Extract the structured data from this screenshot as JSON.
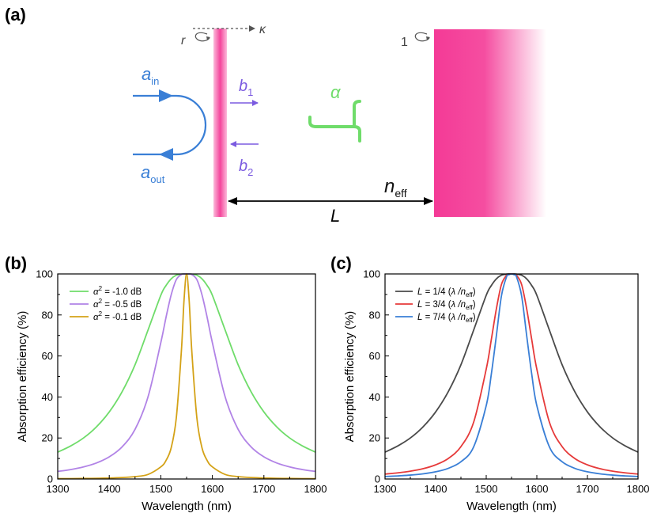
{
  "panel_labels": {
    "a": "(a)",
    "b": "(b)",
    "c": "(c)"
  },
  "diagram": {
    "r": "r",
    "kappa": "κ",
    "one": "1",
    "a_in_base": "a",
    "a_in_sub": "in",
    "a_out_base": "a",
    "a_out_sub": "out",
    "b1_base": "b",
    "b1_sub": "1",
    "b2_base": "b",
    "b2_sub": "2",
    "alpha": "α",
    "n_base": "n",
    "n_sub": "eff",
    "L": "L",
    "colors": {
      "blue": "#3a7fd6",
      "purple": "#7b5be0",
      "green": "#6fdc6a",
      "pink": "#f43a96",
      "dark": "#444444"
    }
  },
  "chart_data": [
    {
      "type": "line",
      "id": "b",
      "xlabel": "Wavelength (nm)",
      "ylabel": "Absorption efficiency (%)",
      "xlim": [
        1300,
        1800
      ],
      "ylim": [
        0,
        100
      ],
      "xticks": [
        1300,
        1400,
        1500,
        1600,
        1700,
        1800
      ],
      "yticks": [
        0,
        20,
        40,
        60,
        80,
        100
      ],
      "legend_position": "top-left",
      "x": [
        1300,
        1325,
        1350,
        1375,
        1400,
        1425,
        1450,
        1475,
        1500,
        1510,
        1520,
        1530,
        1540,
        1545,
        1550,
        1555,
        1560,
        1570,
        1580,
        1590,
        1600,
        1625,
        1650,
        1675,
        1700,
        1725,
        1750,
        1775,
        1800
      ],
      "series": [
        {
          "name_pre": "α",
          "name_sup": "2",
          "name_post": " = -1.0 dB",
          "color": "#6fdc6a",
          "values": [
            13.1,
            16.1,
            20,
            25.4,
            32.7,
            42.6,
            55.7,
            72.5,
            89.6,
            94.3,
            97.6,
            99.4,
            99.9,
            100,
            100,
            100,
            99.9,
            99.4,
            97.6,
            94.3,
            89.6,
            72.5,
            55.7,
            42.6,
            32.7,
            25.4,
            20,
            16.1,
            13.1
          ]
        },
        {
          "name_pre": "α",
          "name_sup": "2",
          "name_post": " = -0.5 dB",
          "color": "#b183e6",
          "values": [
            3.7,
            4.6,
            5.9,
            7.8,
            10.8,
            15.7,
            24.2,
            39.9,
            66.5,
            78.7,
            89.7,
            97.2,
            99.7,
            100,
            100,
            100,
            99.7,
            97.2,
            89.7,
            78.7,
            66.5,
            39.9,
            24.2,
            15.7,
            10.8,
            7.8,
            5.9,
            4.6,
            3.7
          ]
        },
        {
          "name_pre": "α",
          "name_sup": "2",
          "name_post": " = -0.1 dB",
          "color": "#d4a217",
          "values": [
            0.16,
            0.2,
            0.26,
            0.35,
            0.49,
            0.73,
            1.17,
            2.2,
            5.9,
            9.0,
            15.1,
            29.7,
            62.8,
            87,
            100,
            87,
            62.8,
            29.7,
            15.1,
            9.0,
            5.9,
            2.2,
            1.17,
            0.73,
            0.49,
            0.35,
            0.26,
            0.2,
            0.16
          ]
        }
      ]
    },
    {
      "type": "line",
      "id": "c",
      "xlabel": "Wavelength (nm)",
      "ylabel": "Absorption efficiency (%)",
      "xlim": [
        1300,
        1800
      ],
      "ylim": [
        0,
        100
      ],
      "xticks": [
        1300,
        1400,
        1500,
        1600,
        1700,
        1800
      ],
      "yticks": [
        0,
        20,
        40,
        60,
        80,
        100
      ],
      "legend_position": "top-left",
      "x": [
        1300,
        1325,
        1350,
        1375,
        1400,
        1425,
        1450,
        1475,
        1500,
        1510,
        1520,
        1530,
        1540,
        1545,
        1550,
        1555,
        1560,
        1570,
        1580,
        1590,
        1600,
        1625,
        1650,
        1675,
        1700,
        1725,
        1750,
        1775,
        1800
      ],
      "series": [
        {
          "name_pre": "L",
          "name_mid": " = 1/4 (",
          "name_lambda": "λ",
          "name_n": " /n",
          "name_sub": "eff",
          "name_post": ")",
          "color": "#4a4a4a",
          "values": [
            13.1,
            16.1,
            20,
            25.4,
            32.7,
            42.6,
            55.7,
            72.5,
            89.6,
            94.3,
            97.6,
            99.4,
            99.9,
            100,
            100,
            100,
            99.9,
            99.4,
            97.6,
            94.3,
            89.6,
            72.5,
            55.7,
            42.6,
            32.7,
            25.4,
            20,
            16.1,
            13.1
          ]
        },
        {
          "name_pre": "L",
          "name_mid": " = 3/4 (",
          "name_lambda": "λ",
          "name_n": " /n",
          "name_sub": "eff",
          "name_post": ")",
          "color": "#e63a3a",
          "values": [
            2.4,
            3.0,
            3.8,
            5.0,
            6.9,
            10.0,
            15.8,
            27.6,
            53.6,
            67.9,
            82.9,
            94.8,
            99.3,
            99.8,
            100,
            99.8,
            99.3,
            94.8,
            82.9,
            67.9,
            53.6,
            27.6,
            15.8,
            10.0,
            6.9,
            5.0,
            3.8,
            3.0,
            2.4
          ]
        },
        {
          "name_pre": "L",
          "name_mid": " = 7/4 (",
          "name_lambda": "λ",
          "name_n": " /n",
          "name_sub": "eff",
          "name_post": ")",
          "color": "#3a7fd6",
          "values": [
            1.2,
            1.5,
            1.9,
            2.5,
            3.5,
            5.2,
            8.4,
            15.6,
            35.8,
            51.0,
            69.8,
            89.2,
            98.5,
            99.6,
            100,
            99.6,
            98.5,
            89.2,
            69.8,
            51.0,
            35.8,
            15.6,
            8.4,
            5.2,
            3.5,
            2.5,
            1.9,
            1.5,
            1.2
          ]
        }
      ]
    }
  ]
}
